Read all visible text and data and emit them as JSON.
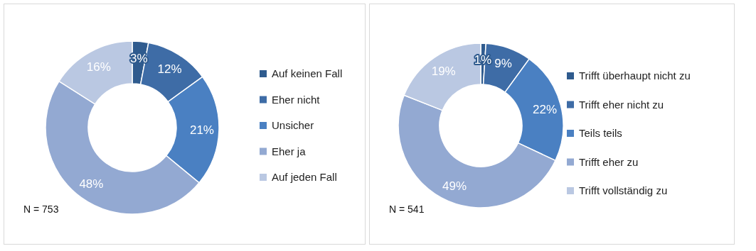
{
  "chart_data": [
    {
      "type": "donut",
      "categories": [
        "Auf keinen Fall",
        "Eher nicht",
        "Unsicher",
        "Eher ja",
        "Auf jeden Fall"
      ],
      "values": [
        3,
        12,
        21,
        48,
        16
      ],
      "colors": [
        "#2f5b8e",
        "#3e6ca6",
        "#4a80c2",
        "#93a9d2",
        "#bac8e2"
      ],
      "value_labels": [
        "3%",
        "12%",
        "21%",
        "48%",
        "16%"
      ],
      "legend": "right",
      "annotations": [
        "N = 753"
      ]
    },
    {
      "type": "donut",
      "categories": [
        "Trifft überhaupt nicht zu",
        "Trifft eher nicht zu",
        "Teils teils",
        "Trifft eher zu",
        "Trifft vollständig zu"
      ],
      "values": [
        1,
        9,
        22,
        49,
        19
      ],
      "colors": [
        "#2f5b8e",
        "#3e6ca6",
        "#4a80c2",
        "#93a9d2",
        "#bac8e2"
      ],
      "value_labels": [
        "1%",
        "9%",
        "22%",
        "49%",
        "19%"
      ],
      "legend": "right",
      "annotations": [
        "N = 541"
      ]
    }
  ]
}
